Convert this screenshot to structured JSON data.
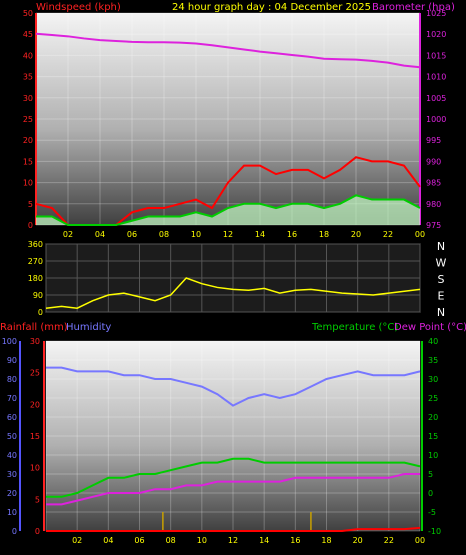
{
  "header": {
    "left": "Windspeed (kph)",
    "center": "24 hour graph day : 04 December 2025",
    "right": "Barometer (hpa)"
  },
  "x_ticks": [
    "02",
    "04",
    "06",
    "08",
    "10",
    "12",
    "14",
    "16",
    "18",
    "20",
    "22",
    "00"
  ],
  "panel3_header": {
    "rain": "Rainfall (mm)",
    "humidity": "Humidity",
    "temperature": "Temperature (°C)",
    "dewpoint": "Dew Point (°C)"
  },
  "compass": [
    "N",
    "W",
    "S",
    "E",
    "N"
  ],
  "colors": {
    "gust": "#ff0000",
    "avg_wind": "#00cc00",
    "wind_band": "#c8ffc8",
    "barometer": "#dd22dd",
    "direction": "#ffff00",
    "humidity": "#7777ff",
    "temperature": "#00cc00",
    "dewpoint": "#dd22dd",
    "rain": "#ff0000",
    "rain_rate": "#c8a000"
  },
  "chart_data": [
    {
      "type": "line",
      "title": "24 hour graph day : 04 December 2025",
      "y_left": {
        "label": "Windspeed (kph)",
        "ticks": [
          0,
          5,
          10,
          15,
          20,
          25,
          30,
          35,
          40,
          45,
          50
        ]
      },
      "y_right": {
        "label": "Barometer (hpa)",
        "ticks": [
          975,
          980,
          985,
          990,
          995,
          1000,
          1005,
          1010,
          1015,
          1020,
          1025
        ]
      },
      "x": [
        0,
        1,
        2,
        3,
        4,
        5,
        6,
        7,
        8,
        9,
        10,
        11,
        12,
        13,
        14,
        15,
        16,
        17,
        18,
        19,
        20,
        21,
        22,
        23,
        24
      ],
      "series": [
        {
          "name": "Windspeed (kph)",
          "key": "gust",
          "values": [
            5,
            4,
            0,
            0,
            0,
            0,
            3,
            4,
            4,
            5,
            6,
            4,
            10,
            14,
            14,
            12,
            13,
            13,
            11,
            13,
            16,
            15,
            15,
            14,
            9
          ]
        },
        {
          "name": "avg",
          "key": "avg_wind",
          "values": [
            2,
            2,
            0,
            0,
            0,
            0,
            1,
            2,
            2,
            2,
            3,
            2,
            4,
            5,
            5,
            4,
            5,
            5,
            4,
            5,
            7,
            6,
            6,
            6,
            4
          ]
        },
        {
          "name": "Barometer (hpa)",
          "key": "barometer",
          "values": [
            1020.1,
            1019.8,
            1019.5,
            1019.0,
            1018.6,
            1018.4,
            1018.2,
            1018.1,
            1018.1,
            1018.0,
            1017.8,
            1017.4,
            1016.9,
            1016.4,
            1015.9,
            1015.5,
            1015.1,
            1014.7,
            1014.2,
            1014.1,
            1014.0,
            1013.7,
            1013.3,
            1012.6,
            1012.2
          ]
        }
      ]
    },
    {
      "type": "line",
      "y_ticks": [
        0,
        90,
        180,
        270,
        360
      ],
      "x": [
        0,
        1,
        2,
        3,
        4,
        5,
        6,
        7,
        8,
        9,
        10,
        11,
        12,
        13,
        14,
        15,
        16,
        17,
        18,
        19,
        20,
        21,
        22,
        23,
        24
      ],
      "series": [
        {
          "name": "Wind direction",
          "key": "direction",
          "values": [
            20,
            30,
            20,
            60,
            90,
            100,
            80,
            60,
            90,
            180,
            150,
            130,
            120,
            115,
            125,
            100,
            115,
            120,
            110,
            100,
            95,
            90,
            100,
            110,
            120
          ]
        }
      ]
    },
    {
      "type": "line",
      "y_rain": {
        "label": "Rainfall (mm)",
        "ticks": [
          0,
          5,
          10,
          15,
          20,
          25,
          30
        ]
      },
      "y_humidity": {
        "label": "Humidity",
        "ticks": [
          0,
          10,
          20,
          30,
          40,
          50,
          60,
          70,
          80,
          90,
          100
        ]
      },
      "y_temp": {
        "label": "Temperature (°C)",
        "ticks": [
          -10,
          -5,
          0,
          5,
          10,
          15,
          20,
          25,
          30,
          35,
          40
        ]
      },
      "x": [
        0,
        1,
        2,
        3,
        4,
        5,
        6,
        7,
        8,
        9,
        10,
        11,
        12,
        13,
        14,
        15,
        16,
        17,
        18,
        19,
        20,
        21,
        22,
        23,
        24
      ],
      "series": [
        {
          "name": "Humidity",
          "key": "humidity",
          "values": [
            86,
            86,
            84,
            84,
            84,
            82,
            82,
            80,
            80,
            78,
            76,
            72,
            66,
            70,
            72,
            70,
            72,
            76,
            80,
            82,
            84,
            82,
            82,
            82,
            84
          ]
        },
        {
          "name": "Temperature (°C)",
          "key": "temperature",
          "values": [
            -1,
            -1,
            0,
            2,
            4,
            4,
            5,
            5,
            6,
            7,
            8,
            8,
            9,
            9,
            8,
            8,
            8,
            8,
            8,
            8,
            8,
            8,
            8,
            8,
            7
          ]
        },
        {
          "name": "Dew Point (°C)",
          "key": "dewpoint",
          "values": [
            -3,
            -3,
            -2,
            -1,
            0,
            0,
            0,
            1,
            1,
            2,
            2,
            3,
            3,
            3,
            3,
            3,
            4,
            4,
            4,
            4,
            4,
            4,
            4,
            5,
            5
          ]
        },
        {
          "name": "Rainfall (mm)",
          "key": "rain",
          "values": [
            0,
            0,
            0,
            0,
            0,
            0,
            0,
            0,
            0,
            0,
            0,
            0,
            0,
            0,
            0,
            0,
            0,
            0,
            0,
            0,
            0.3,
            0.3,
            0.3,
            0.3,
            0.5
          ]
        },
        {
          "name": "rain rate",
          "key": "rain_rate",
          "bars": [
            [
              7.5,
              3
            ],
            [
              17,
              3
            ]
          ]
        }
      ]
    }
  ]
}
